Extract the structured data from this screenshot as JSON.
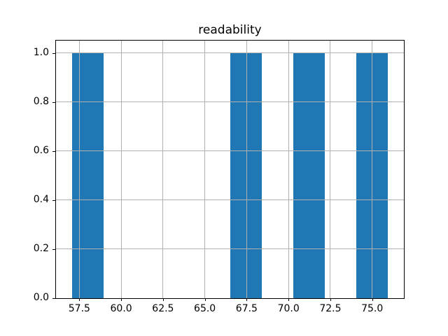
{
  "chart_data": {
    "type": "bar",
    "subtype": "histogram",
    "title": "readability",
    "xlabel": "",
    "ylabel": "",
    "bin_edges": [
      57.05,
      58.94,
      60.83,
      62.72,
      64.61,
      66.5,
      68.39,
      70.28,
      72.17,
      74.06,
      75.95
    ],
    "counts": [
      1,
      0,
      0,
      0,
      0,
      1,
      0,
      1,
      0,
      1
    ],
    "xticks": [
      57.5,
      60.0,
      62.5,
      65.0,
      67.5,
      70.0,
      72.5,
      75.0
    ],
    "xtick_labels": [
      "57.5",
      "60.0",
      "62.5",
      "65.0",
      "67.5",
      "70.0",
      "72.5",
      "75.0"
    ],
    "yticks": [
      0.0,
      0.2,
      0.4,
      0.6,
      0.8,
      1.0
    ],
    "ytick_labels": [
      "0.0",
      "0.2",
      "0.4",
      "0.6",
      "0.8",
      "1.0"
    ],
    "xlim": [
      56.105,
      76.895
    ],
    "ylim": [
      0,
      1.05
    ],
    "grid": true,
    "grid_above_bars": true,
    "legend_position": null,
    "colors": {
      "bar_fill": "#1f77b4",
      "grid": "#b0b0b0",
      "axes_edge": "#000000",
      "background": "#ffffff",
      "text": "#000000"
    }
  }
}
